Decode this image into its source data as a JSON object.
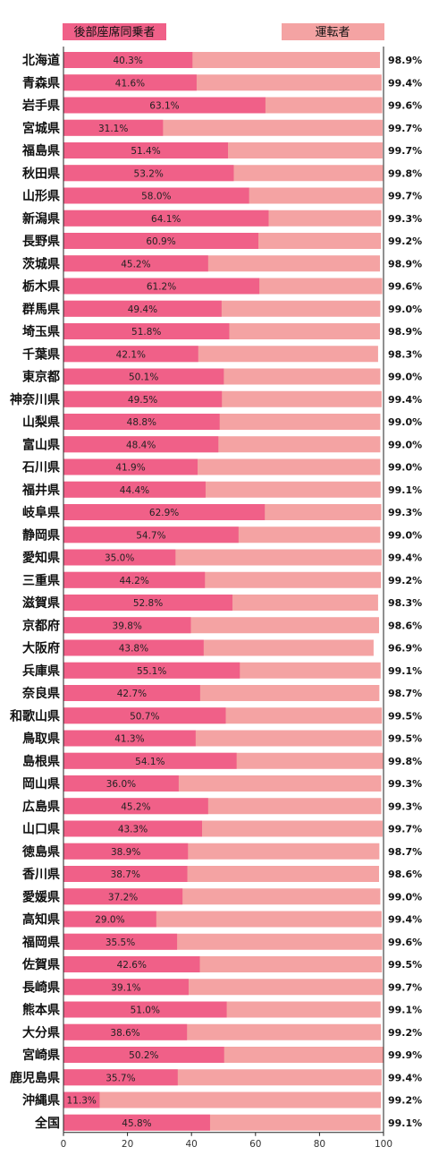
{
  "chart_data": {
    "type": "bar",
    "orientation": "horizontal",
    "categories": [
      "北海道",
      "青森県",
      "岩手県",
      "宮城県",
      "福島県",
      "秋田県",
      "山形県",
      "新潟県",
      "長野県",
      "茨城県",
      "栃木県",
      "群馬県",
      "埼玉県",
      "千葉県",
      "東京都",
      "神奈川県",
      "山梨県",
      "富山県",
      "石川県",
      "福井県",
      "岐阜県",
      "静岡県",
      "愛知県",
      "三重県",
      "滋賀県",
      "京都府",
      "大阪府",
      "兵庫県",
      "奈良県",
      "和歌山県",
      "鳥取県",
      "島根県",
      "岡山県",
      "広島県",
      "山口県",
      "徳島県",
      "香川県",
      "愛媛県",
      "高知県",
      "福岡県",
      "佐賀県",
      "長崎県",
      "熊本県",
      "大分県",
      "宮崎県",
      "鹿児島県",
      "沖縄県",
      "全国"
    ],
    "series": [
      {
        "name": "後部座席同乗者",
        "color": "#f06088",
        "values": [
          40.3,
          41.6,
          63.1,
          31.1,
          51.4,
          53.2,
          58.0,
          64.1,
          60.9,
          45.2,
          61.2,
          49.4,
          51.8,
          42.1,
          50.1,
          49.5,
          48.8,
          48.4,
          41.9,
          44.4,
          62.9,
          54.7,
          35.0,
          44.2,
          52.8,
          39.8,
          43.8,
          55.1,
          42.7,
          50.7,
          41.3,
          54.1,
          36.0,
          45.2,
          43.3,
          38.9,
          38.7,
          37.2,
          29.0,
          35.5,
          42.6,
          39.1,
          51.0,
          38.6,
          50.2,
          35.7,
          11.3,
          45.8
        ],
        "labels": [
          "40.3%",
          "41.6%",
          "63.1%",
          "31.1%",
          "51.4%",
          "53.2%",
          "58.0%",
          "64.1%",
          "60.9%",
          "45.2%",
          "61.2%",
          "49.4%",
          "51.8%",
          "42.1%",
          "50.1%",
          "49.5%",
          "48.8%",
          "48.4%",
          "41.9%",
          "44.4%",
          "62.9%",
          "54.7%",
          "35.0%",
          "44.2%",
          "52.8%",
          "39.8%",
          "43.8%",
          "55.1%",
          "42.7%",
          "50.7%",
          "41.3%",
          "54.1%",
          "36.0%",
          "45.2%",
          "43.3%",
          "38.9%",
          "38.7%",
          "37.2%",
          "29.0%",
          "35.5%",
          "42.6%",
          "39.1%",
          "51.0%",
          "38.6%",
          "50.2%",
          "35.7%",
          "11.3%",
          "45.8%"
        ]
      },
      {
        "name": "運転者",
        "color": "#f4a3a3",
        "values": [
          98.9,
          99.4,
          99.6,
          99.7,
          99.7,
          99.8,
          99.7,
          99.3,
          99.2,
          98.9,
          99.6,
          99.0,
          98.9,
          98.3,
          99.0,
          99.4,
          99.0,
          99.0,
          99.0,
          99.1,
          99.3,
          99.0,
          99.4,
          99.2,
          98.3,
          98.6,
          96.9,
          99.1,
          98.7,
          99.5,
          99.5,
          99.8,
          99.3,
          99.3,
          99.7,
          98.7,
          98.6,
          99.0,
          99.4,
          99.6,
          99.5,
          99.7,
          99.1,
          99.2,
          99.9,
          99.4,
          99.2,
          99.1
        ],
        "labels": [
          "98.9%",
          "99.4%",
          "99.6%",
          "99.7%",
          "99.7%",
          "99.8%",
          "99.7%",
          "99.3%",
          "99.2%",
          "98.9%",
          "99.6%",
          "99.0%",
          "98.9%",
          "98.3%",
          "99.0%",
          "99.4%",
          "99.0%",
          "99.0%",
          "99.0%",
          "99.1%",
          "99.3%",
          "99.0%",
          "99.4%",
          "99.2%",
          "98.3%",
          "98.6%",
          "96.9%",
          "99.1%",
          "98.7%",
          "99.5%",
          "99.5%",
          "99.8%",
          "99.3%",
          "99.3%",
          "99.7%",
          "98.7%",
          "98.6%",
          "99.0%",
          "99.4%",
          "99.6%",
          "99.5%",
          "99.7%",
          "99.1%",
          "99.2%",
          "99.9%",
          "99.4%",
          "99.2%",
          "99.1%"
        ]
      }
    ],
    "xlim": [
      0,
      100
    ],
    "xticks": [
      "0",
      "20",
      "40",
      "60",
      "80",
      "100"
    ],
    "title": "",
    "xlabel": "",
    "ylabel": "",
    "legend": "top",
    "grid": false
  }
}
